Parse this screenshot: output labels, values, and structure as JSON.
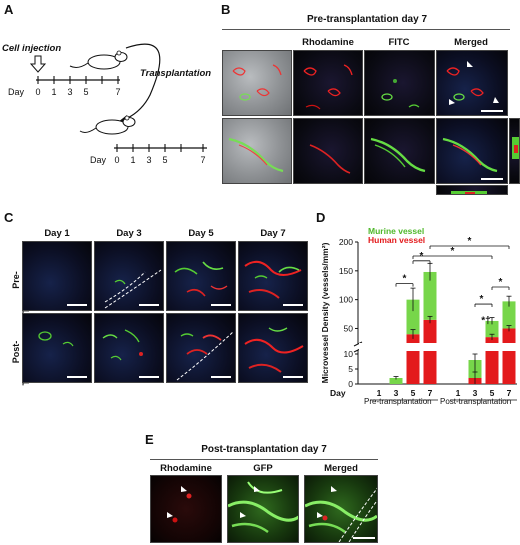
{
  "panels": {
    "A": {
      "label": "A",
      "cell_injection": "Cell injection",
      "transplantation": "Transplantation",
      "day_word": "Day",
      "timeline_ticks": [
        "0",
        "1",
        "3",
        "5",
        "7"
      ]
    },
    "B": {
      "label": "B",
      "title": "Pre-transplantation day 7",
      "columns": [
        "Rhodamine",
        "FITC",
        "Merged"
      ]
    },
    "C": {
      "label": "C",
      "columns": [
        "Day 1",
        "Day 3",
        "Day 5",
        "Day 7"
      ],
      "rows": [
        "Pre-\nTransplantation",
        "Post-\nTransplantation"
      ]
    },
    "D": {
      "label": "D",
      "group_labels": [
        "Pre-transplantation",
        "Post-transplantation"
      ]
    },
    "E": {
      "label": "E",
      "title": "Post-transplantation day 7",
      "columns": [
        "Rhodamine",
        "GFP",
        "Merged"
      ]
    }
  },
  "chart_data": {
    "type": "bar",
    "stacked": true,
    "broken_axis": true,
    "ylabel": "Microvessel Density (vessels/mm²)",
    "xlabel": "Day",
    "categories": [
      "1",
      "3",
      "5",
      "7",
      "1",
      "3",
      "5",
      "7"
    ],
    "groups": [
      "Pre-transplantation",
      "Post-transplantation"
    ],
    "y_ticks": [
      "200",
      "150",
      "100",
      "50",
      "10",
      "5",
      "0"
    ],
    "series": [
      {
        "name": "Human vessel",
        "color": "#e31a1c",
        "values": [
          0,
          0,
          40,
          65,
          0,
          2,
          35,
          50
        ],
        "errors": [
          0,
          0,
          8,
          6,
          0,
          2,
          5,
          5
        ]
      },
      {
        "name": "Murine vessel",
        "color": "#77d64a",
        "values": [
          0,
          2,
          60,
          83,
          0,
          6,
          28,
          47
        ],
        "errors": [
          0,
          0.5,
          20,
          15,
          0,
          4,
          6,
          9
        ]
      }
    ],
    "significance": [
      "*",
      "*",
      "*",
      "*",
      "*",
      "*†",
      "*"
    ]
  }
}
